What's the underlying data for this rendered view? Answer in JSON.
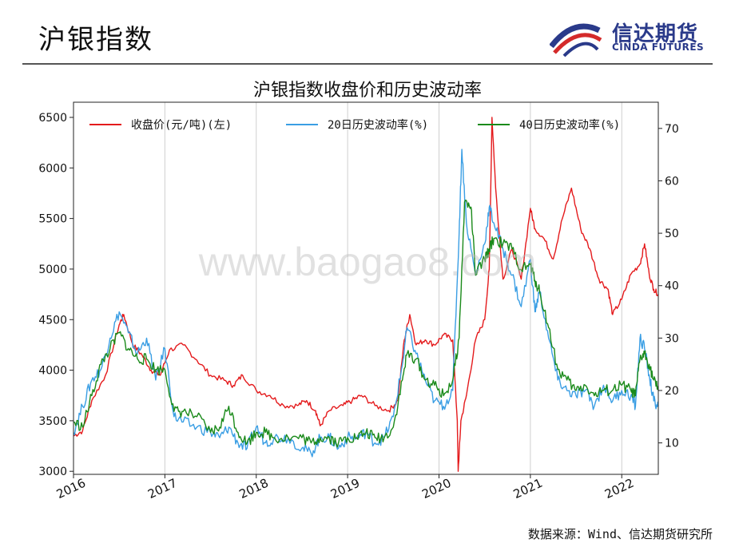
{
  "slide": {
    "title": "沪银指数",
    "source": "数据来源：Wind、信达期货研究所"
  },
  "logo": {
    "name_cn": "信达期货",
    "name_en": "CINDA FUTURES",
    "icon": "cinda-swoosh-icon",
    "colors": {
      "navy": "#2a3a8a",
      "red": "#d42a2a"
    }
  },
  "watermark": "www.baogao8.com",
  "chart_data": {
    "type": "line",
    "title": "沪银指数收盘价和历史波动率",
    "x_ticks": [
      "2016",
      "2017",
      "2018",
      "2019",
      "2020",
      "2021",
      "2022"
    ],
    "x_range": [
      2016.0,
      2022.4
    ],
    "y_left_ticks": [
      3000,
      3500,
      4000,
      4500,
      5000,
      5500,
      6000,
      6500
    ],
    "y_left_range": [
      2970,
      6650
    ],
    "y_right_ticks": [
      10,
      20,
      30,
      40,
      50,
      60,
      70
    ],
    "y_right_range": [
      4,
      75
    ],
    "grid": "vertical",
    "legend_position": "top",
    "series": [
      {
        "name": "收盘价(元/吨)(左)",
        "axis": "left",
        "color": "#e41a1c",
        "points": [
          [
            2016.0,
            3350
          ],
          [
            2016.1,
            3400
          ],
          [
            2016.2,
            3700
          ],
          [
            2016.35,
            3950
          ],
          [
            2016.5,
            4450
          ],
          [
            2016.55,
            4550
          ],
          [
            2016.65,
            4250
          ],
          [
            2016.75,
            4150
          ],
          [
            2016.85,
            4000
          ],
          [
            2016.95,
            3950
          ],
          [
            2017.05,
            4200
          ],
          [
            2017.2,
            4250
          ],
          [
            2017.35,
            4100
          ],
          [
            2017.5,
            3950
          ],
          [
            2017.65,
            3900
          ],
          [
            2017.75,
            3850
          ],
          [
            2017.85,
            3950
          ],
          [
            2018.0,
            3800
          ],
          [
            2018.15,
            3750
          ],
          [
            2018.3,
            3650
          ],
          [
            2018.45,
            3650
          ],
          [
            2018.55,
            3700
          ],
          [
            2018.65,
            3600
          ],
          [
            2018.7,
            3450
          ],
          [
            2018.8,
            3600
          ],
          [
            2018.95,
            3650
          ],
          [
            2019.05,
            3700
          ],
          [
            2019.15,
            3750
          ],
          [
            2019.3,
            3650
          ],
          [
            2019.45,
            3600
          ],
          [
            2019.55,
            3700
          ],
          [
            2019.62,
            4300
          ],
          [
            2019.68,
            4550
          ],
          [
            2019.75,
            4250
          ],
          [
            2019.85,
            4300
          ],
          [
            2019.95,
            4250
          ],
          [
            2020.05,
            4350
          ],
          [
            2020.15,
            4300
          ],
          [
            2020.2,
            3500
          ],
          [
            2020.21,
            3000
          ],
          [
            2020.24,
            3500
          ],
          [
            2020.3,
            3750
          ],
          [
            2020.4,
            4300
          ],
          [
            2020.5,
            4500
          ],
          [
            2020.55,
            5000
          ],
          [
            2020.58,
            6500
          ],
          [
            2020.62,
            5800
          ],
          [
            2020.7,
            4900
          ],
          [
            2020.8,
            5200
          ],
          [
            2020.9,
            4900
          ],
          [
            2021.0,
            5600
          ],
          [
            2021.05,
            5400
          ],
          [
            2021.15,
            5300
          ],
          [
            2021.25,
            5100
          ],
          [
            2021.35,
            5500
          ],
          [
            2021.45,
            5800
          ],
          [
            2021.55,
            5400
          ],
          [
            2021.65,
            5200
          ],
          [
            2021.75,
            4900
          ],
          [
            2021.85,
            4800
          ],
          [
            2021.9,
            4550
          ],
          [
            2022.0,
            4700
          ],
          [
            2022.1,
            4950
          ],
          [
            2022.2,
            5050
          ],
          [
            2022.25,
            5250
          ],
          [
            2022.3,
            4950
          ],
          [
            2022.35,
            4800
          ],
          [
            2022.4,
            4750
          ]
        ]
      },
      {
        "name": "20日历史波动率(%)",
        "axis": "right",
        "color": "#3a9ee4",
        "points": [
          [
            2016.0,
            12
          ],
          [
            2016.1,
            17
          ],
          [
            2016.2,
            22
          ],
          [
            2016.3,
            24
          ],
          [
            2016.4,
            30
          ],
          [
            2016.5,
            35
          ],
          [
            2016.6,
            31
          ],
          [
            2016.7,
            27
          ],
          [
            2016.8,
            30
          ],
          [
            2016.9,
            22
          ],
          [
            2017.0,
            28
          ],
          [
            2017.1,
            15
          ],
          [
            2017.2,
            14
          ],
          [
            2017.35,
            13
          ],
          [
            2017.5,
            12
          ],
          [
            2017.6,
            11
          ],
          [
            2017.7,
            13
          ],
          [
            2017.8,
            10
          ],
          [
            2017.9,
            9
          ],
          [
            2018.0,
            13
          ],
          [
            2018.1,
            10
          ],
          [
            2018.2,
            11
          ],
          [
            2018.35,
            11
          ],
          [
            2018.5,
            9
          ],
          [
            2018.6,
            8
          ],
          [
            2018.7,
            11
          ],
          [
            2018.8,
            11
          ],
          [
            2018.9,
            9
          ],
          [
            2019.0,
            11
          ],
          [
            2019.1,
            11
          ],
          [
            2019.2,
            12
          ],
          [
            2019.3,
            10
          ],
          [
            2019.4,
            11
          ],
          [
            2019.5,
            15
          ],
          [
            2019.6,
            25
          ],
          [
            2019.65,
            32
          ],
          [
            2019.75,
            27
          ],
          [
            2019.85,
            22
          ],
          [
            2019.95,
            18
          ],
          [
            2020.05,
            17
          ],
          [
            2020.15,
            20
          ],
          [
            2020.22,
            50
          ],
          [
            2020.25,
            66
          ],
          [
            2020.3,
            52
          ],
          [
            2020.4,
            42
          ],
          [
            2020.5,
            48
          ],
          [
            2020.55,
            55
          ],
          [
            2020.6,
            52
          ],
          [
            2020.7,
            47
          ],
          [
            2020.8,
            42
          ],
          [
            2020.9,
            36
          ],
          [
            2021.0,
            45
          ],
          [
            2021.05,
            35
          ],
          [
            2021.1,
            39
          ],
          [
            2021.2,
            30
          ],
          [
            2021.3,
            22
          ],
          [
            2021.4,
            20
          ],
          [
            2021.5,
            19
          ],
          [
            2021.6,
            20
          ],
          [
            2021.7,
            17
          ],
          [
            2021.8,
            21
          ],
          [
            2021.9,
            18
          ],
          [
            2022.0,
            20
          ],
          [
            2022.1,
            19
          ],
          [
            2022.15,
            17
          ],
          [
            2022.2,
            30
          ],
          [
            2022.25,
            28
          ],
          [
            2022.3,
            23
          ],
          [
            2022.35,
            18
          ],
          [
            2022.4,
            17
          ]
        ]
      },
      {
        "name": "40日历史波动率(%)",
        "axis": "right",
        "color": "#1a8a1a",
        "points": [
          [
            2016.0,
            14
          ],
          [
            2016.1,
            13
          ],
          [
            2016.2,
            19
          ],
          [
            2016.3,
            25
          ],
          [
            2016.4,
            28
          ],
          [
            2016.5,
            31
          ],
          [
            2016.6,
            28
          ],
          [
            2016.7,
            26
          ],
          [
            2016.8,
            26
          ],
          [
            2016.9,
            24
          ],
          [
            2017.0,
            24
          ],
          [
            2017.1,
            16
          ],
          [
            2017.2,
            16
          ],
          [
            2017.35,
            15
          ],
          [
            2017.5,
            12
          ],
          [
            2017.6,
            13
          ],
          [
            2017.7,
            17
          ],
          [
            2017.8,
            12
          ],
          [
            2017.9,
            10
          ],
          [
            2018.0,
            12
          ],
          [
            2018.1,
            12
          ],
          [
            2018.2,
            11
          ],
          [
            2018.35,
            11
          ],
          [
            2018.5,
            11
          ],
          [
            2018.6,
            10
          ],
          [
            2018.7,
            11
          ],
          [
            2018.8,
            11
          ],
          [
            2018.9,
            10
          ],
          [
            2019.0,
            11
          ],
          [
            2019.1,
            11
          ],
          [
            2019.2,
            12
          ],
          [
            2019.3,
            11
          ],
          [
            2019.4,
            11
          ],
          [
            2019.5,
            13
          ],
          [
            2019.6,
            22
          ],
          [
            2019.65,
            27
          ],
          [
            2019.75,
            26
          ],
          [
            2019.85,
            22
          ],
          [
            2019.95,
            21
          ],
          [
            2020.05,
            19
          ],
          [
            2020.15,
            22
          ],
          [
            2020.22,
            30
          ],
          [
            2020.28,
            56
          ],
          [
            2020.35,
            55
          ],
          [
            2020.4,
            42
          ],
          [
            2020.5,
            45
          ],
          [
            2020.55,
            47
          ],
          [
            2020.6,
            49
          ],
          [
            2020.7,
            48
          ],
          [
            2020.8,
            47
          ],
          [
            2020.9,
            43
          ],
          [
            2021.0,
            44
          ],
          [
            2021.05,
            41
          ],
          [
            2021.1,
            39
          ],
          [
            2021.2,
            32
          ],
          [
            2021.3,
            24
          ],
          [
            2021.4,
            22
          ],
          [
            2021.5,
            20
          ],
          [
            2021.6,
            21
          ],
          [
            2021.7,
            19
          ],
          [
            2021.8,
            20
          ],
          [
            2021.9,
            20
          ],
          [
            2022.0,
            21
          ],
          [
            2022.1,
            20
          ],
          [
            2022.15,
            19
          ],
          [
            2022.2,
            26
          ],
          [
            2022.25,
            27
          ],
          [
            2022.3,
            25
          ],
          [
            2022.35,
            22
          ],
          [
            2022.4,
            20
          ]
        ]
      }
    ]
  }
}
